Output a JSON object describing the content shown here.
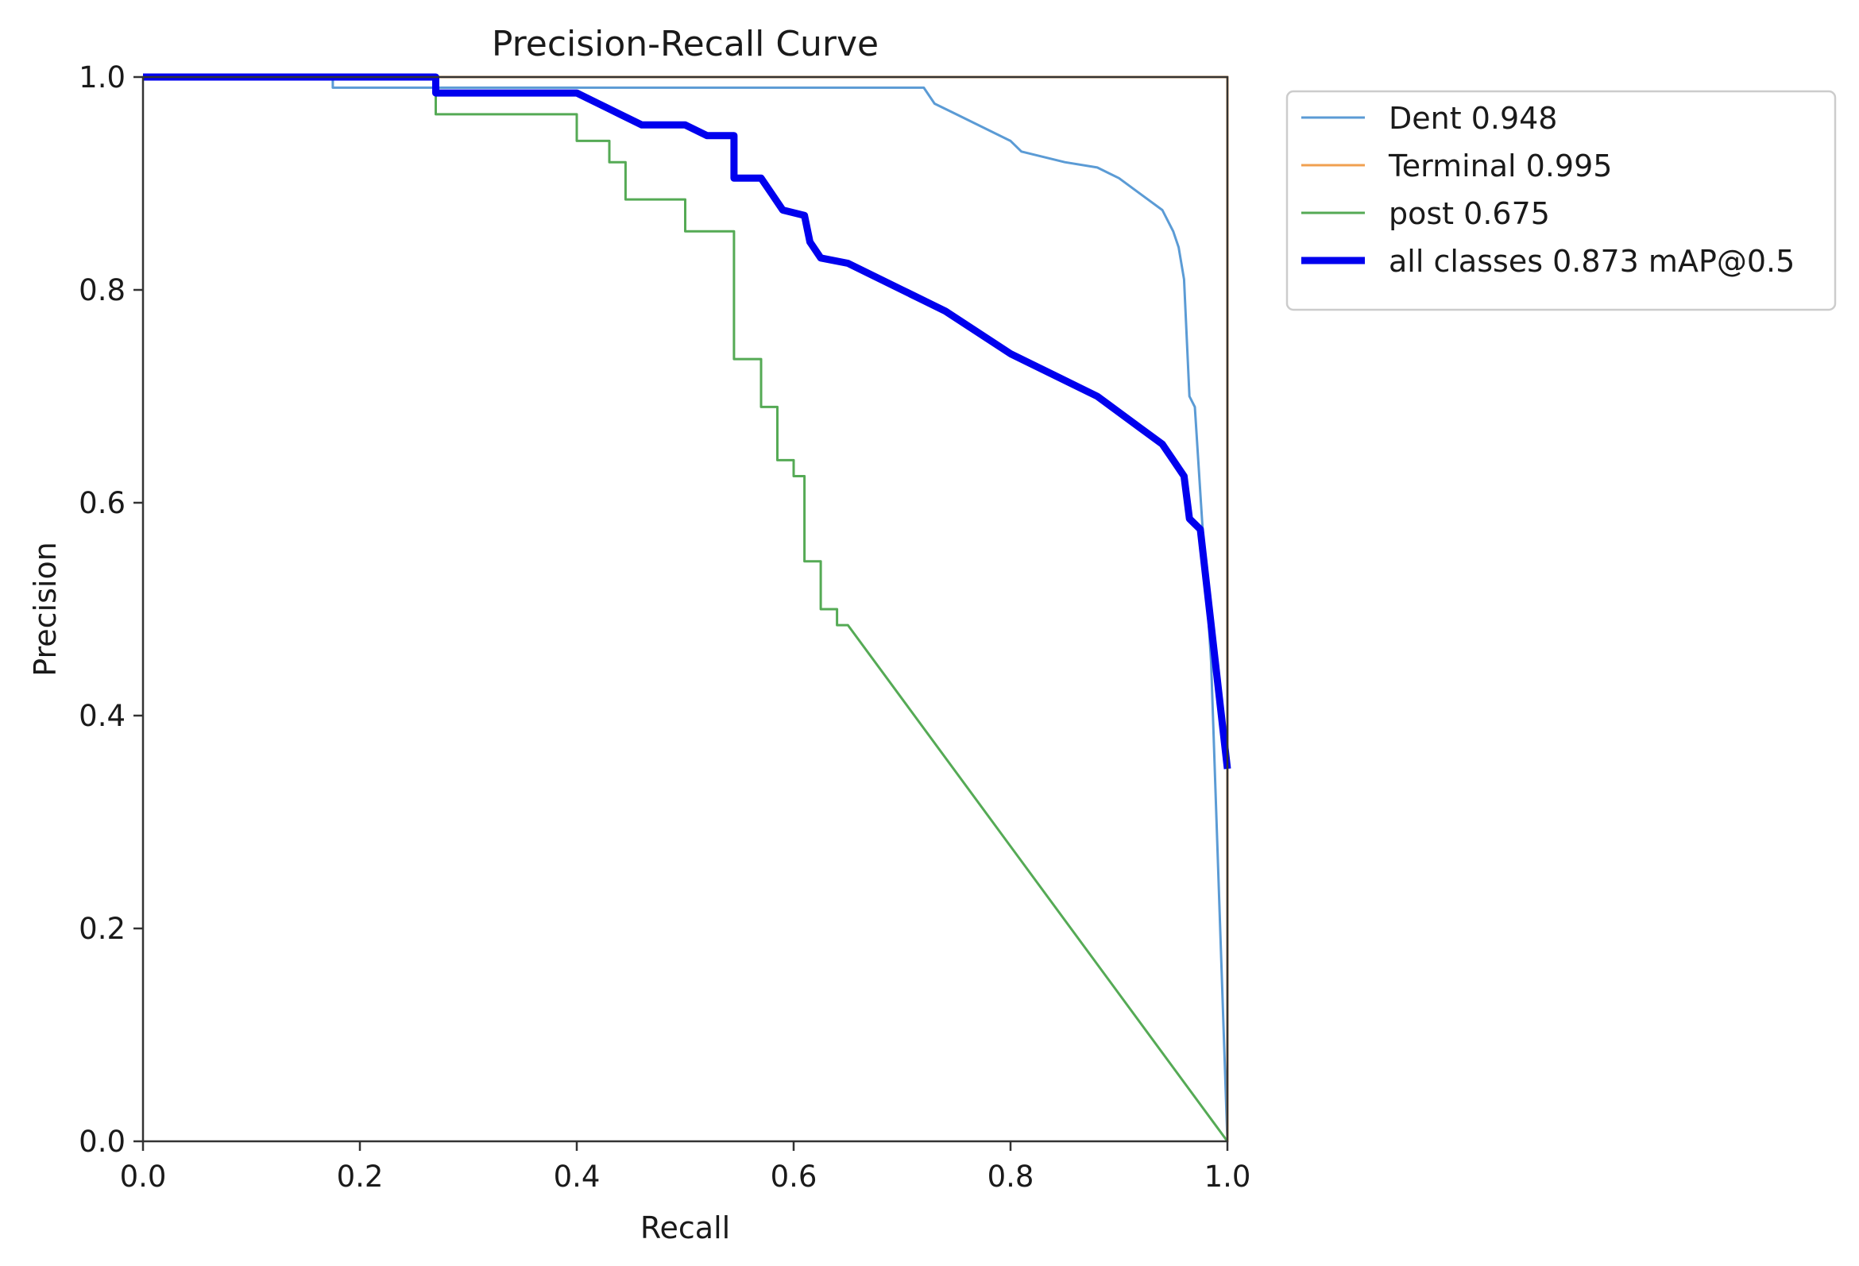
{
  "chart_data": {
    "type": "line",
    "title": "Precision-Recall Curve",
    "xlabel": "Recall",
    "ylabel": "Precision",
    "xlim": [
      0,
      1
    ],
    "ylim": [
      0,
      1
    ],
    "xticks": [
      "0.0",
      "0.2",
      "0.4",
      "0.6",
      "0.8",
      "1.0"
    ],
    "yticks": [
      "0.0",
      "0.2",
      "0.4",
      "0.6",
      "0.8",
      "1.0"
    ],
    "grid": false,
    "legend_position": "outside-top-right",
    "series": [
      {
        "name": "Dent 0.948",
        "color": "#5b9bd5",
        "points": [
          [
            0.0,
            1.0
          ],
          [
            0.175,
            1.0
          ],
          [
            0.175,
            0.99
          ],
          [
            0.72,
            0.99
          ],
          [
            0.73,
            0.975
          ],
          [
            0.75,
            0.965
          ],
          [
            0.8,
            0.94
          ],
          [
            0.81,
            0.93
          ],
          [
            0.85,
            0.92
          ],
          [
            0.88,
            0.915
          ],
          [
            0.9,
            0.905
          ],
          [
            0.92,
            0.89
          ],
          [
            0.94,
            0.875
          ],
          [
            0.95,
            0.855
          ],
          [
            0.955,
            0.84
          ],
          [
            0.96,
            0.81
          ],
          [
            0.965,
            0.7
          ],
          [
            0.97,
            0.69
          ],
          [
            0.985,
            0.45
          ],
          [
            1.0,
            0.0
          ]
        ]
      },
      {
        "name": "Terminal 0.995",
        "color": "#f0a050",
        "points": [
          [
            0.0,
            1.0
          ],
          [
            1.0,
            1.0
          ],
          [
            1.0,
            0.0
          ]
        ]
      },
      {
        "name": "post 0.675",
        "color": "#55aa55",
        "points": [
          [
            0.0,
            1.0
          ],
          [
            0.27,
            1.0
          ],
          [
            0.27,
            0.965
          ],
          [
            0.4,
            0.965
          ],
          [
            0.4,
            0.94
          ],
          [
            0.43,
            0.94
          ],
          [
            0.43,
            0.92
          ],
          [
            0.445,
            0.92
          ],
          [
            0.445,
            0.885
          ],
          [
            0.5,
            0.885
          ],
          [
            0.5,
            0.855
          ],
          [
            0.545,
            0.855
          ],
          [
            0.545,
            0.735
          ],
          [
            0.57,
            0.735
          ],
          [
            0.57,
            0.69
          ],
          [
            0.585,
            0.69
          ],
          [
            0.585,
            0.64
          ],
          [
            0.6,
            0.64
          ],
          [
            0.6,
            0.625
          ],
          [
            0.61,
            0.625
          ],
          [
            0.61,
            0.545
          ],
          [
            0.625,
            0.545
          ],
          [
            0.625,
            0.5
          ],
          [
            0.64,
            0.5
          ],
          [
            0.64,
            0.485
          ],
          [
            0.65,
            0.485
          ],
          [
            1.0,
            0.0
          ]
        ]
      },
      {
        "name": "all classes 0.873 mAP@0.5",
        "color": "#0000ee",
        "points": [
          [
            0.0,
            1.0
          ],
          [
            0.27,
            1.0
          ],
          [
            0.27,
            0.985
          ],
          [
            0.4,
            0.985
          ],
          [
            0.42,
            0.975
          ],
          [
            0.44,
            0.965
          ],
          [
            0.46,
            0.955
          ],
          [
            0.5,
            0.955
          ],
          [
            0.52,
            0.945
          ],
          [
            0.545,
            0.945
          ],
          [
            0.545,
            0.905
          ],
          [
            0.57,
            0.905
          ],
          [
            0.58,
            0.89
          ],
          [
            0.59,
            0.875
          ],
          [
            0.61,
            0.87
          ],
          [
            0.615,
            0.845
          ],
          [
            0.625,
            0.83
          ],
          [
            0.65,
            0.825
          ],
          [
            0.7,
            0.8
          ],
          [
            0.74,
            0.78
          ],
          [
            0.8,
            0.74
          ],
          [
            0.84,
            0.72
          ],
          [
            0.88,
            0.7
          ],
          [
            0.92,
            0.67
          ],
          [
            0.94,
            0.655
          ],
          [
            0.95,
            0.64
          ],
          [
            0.96,
            0.625
          ],
          [
            0.965,
            0.585
          ],
          [
            0.975,
            0.575
          ],
          [
            1.0,
            0.35
          ]
        ]
      }
    ]
  }
}
